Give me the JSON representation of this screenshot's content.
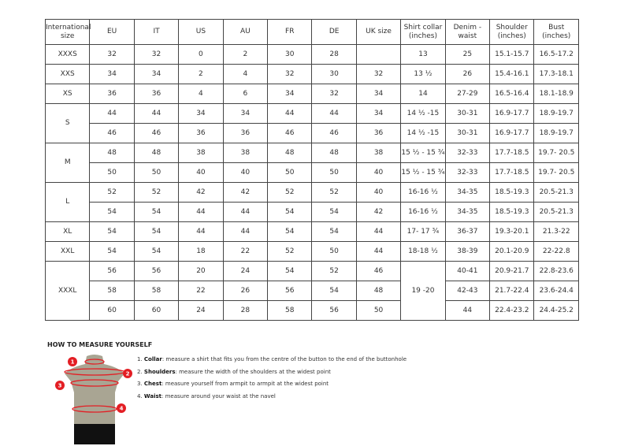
{
  "table": {
    "headers": [
      "International size",
      "EU",
      "IT",
      "US",
      "AU",
      "FR",
      "DE",
      "UK size",
      "Shirt collar (inches)",
      "Denim - waist",
      "Shoulder (inches)",
      "Bust (inches)"
    ],
    "groups": [
      {
        "size": "XXXS",
        "rows": [
          [
            "32",
            "32",
            "0",
            "2",
            "30",
            "28",
            "",
            "13",
            "25",
            "15.1-15.7",
            "16.5-17.2"
          ]
        ]
      },
      {
        "size": "XXS",
        "rows": [
          [
            "34",
            "34",
            "2",
            "4",
            "32",
            "30",
            "32",
            "13 ½",
            "26",
            "15.4-16.1",
            "17.3-18.1"
          ]
        ]
      },
      {
        "size": "XS",
        "rows": [
          [
            "36",
            "36",
            "4",
            "6",
            "34",
            "32",
            "34",
            "14",
            "27-29",
            "16.5-16.4",
            "18.1-18.9"
          ]
        ]
      },
      {
        "size": "S",
        "rows": [
          [
            "44",
            "44",
            "34",
            "34",
            "44",
            "44",
            "34",
            "14 ½ -15",
            "30-31",
            "16.9-17.7",
            "18.9-19.7"
          ],
          [
            "46",
            "46",
            "36",
            "36",
            "46",
            "46",
            "36",
            "14 ½ -15",
            "30-31",
            "16.9-17.7",
            "18.9-19.7"
          ]
        ]
      },
      {
        "size": "M",
        "rows": [
          [
            "48",
            "48",
            "38",
            "38",
            "48",
            "48",
            "38",
            "15 ½ - 15 ¾",
            "32-33",
            "17.7-18.5",
            "19.7- 20.5"
          ],
          [
            "50",
            "50",
            "40",
            "40",
            "50",
            "50",
            "40",
            "15 ½ - 15 ¾",
            "32-33",
            "17.7-18.5",
            "19.7- 20.5"
          ]
        ]
      },
      {
        "size": "L",
        "rows": [
          [
            "52",
            "52",
            "42",
            "42",
            "52",
            "52",
            "40",
            "16-16 ½",
            "34-35",
            "18.5-19.3",
            "20.5-21.3"
          ],
          [
            "54",
            "54",
            "44",
            "44",
            "54",
            "54",
            "42",
            "16-16 ½",
            "34-35",
            "18.5-19.3",
            "20.5-21.3"
          ]
        ]
      },
      {
        "size": "XL",
        "rows": [
          [
            "54",
            "54",
            "44",
            "44",
            "54",
            "54",
            "44",
            "17- 17 ¾",
            "36-37",
            "19.3-20.1",
            "21.3-22"
          ]
        ]
      },
      {
        "size": "XXL",
        "rows": [
          [
            "54",
            "54",
            "18",
            "22",
            "52",
            "50",
            "44",
            "18-18 ½",
            "38-39",
            "20.1-20.9",
            "22-22.8"
          ]
        ]
      },
      {
        "size": "XXXL",
        "collar": "19 -20",
        "rows": [
          [
            "56",
            "56",
            "20",
            "24",
            "54",
            "52",
            "46",
            "",
            "40-41",
            "20.9-21.7",
            "22.8-23.6"
          ],
          [
            "58",
            "58",
            "22",
            "26",
            "56",
            "54",
            "48",
            "",
            "42-43",
            "21.7-22.4",
            "23.6-24.4"
          ],
          [
            "60",
            "60",
            "24",
            "28",
            "58",
            "56",
            "50",
            "",
            "44",
            "22.4-23.2",
            "24.4-25.2"
          ]
        ]
      }
    ]
  },
  "measure": {
    "title": "HOW TO MEASURE YOURSELF",
    "steps": [
      {
        "num": "1.",
        "term": "Collar",
        "text": ": measure a shirt that fits you from the centre of the button to the end of the buttonhole"
      },
      {
        "num": "2.",
        "term": "Shoulders",
        "text": ": measure the width of the shoulders at the widest point"
      },
      {
        "num": "3.",
        "term": "Chest",
        "text": ": measure yourself from armpit to armpit at the widest point"
      },
      {
        "num": "4.",
        "term": "Waist",
        "text": ": measure around your waist at the navel"
      }
    ],
    "markers": [
      "1",
      "2",
      "3",
      "4"
    ],
    "colors": {
      "marker": "#e31e24",
      "torso": "#a9a593",
      "shorts": "#111111"
    }
  }
}
